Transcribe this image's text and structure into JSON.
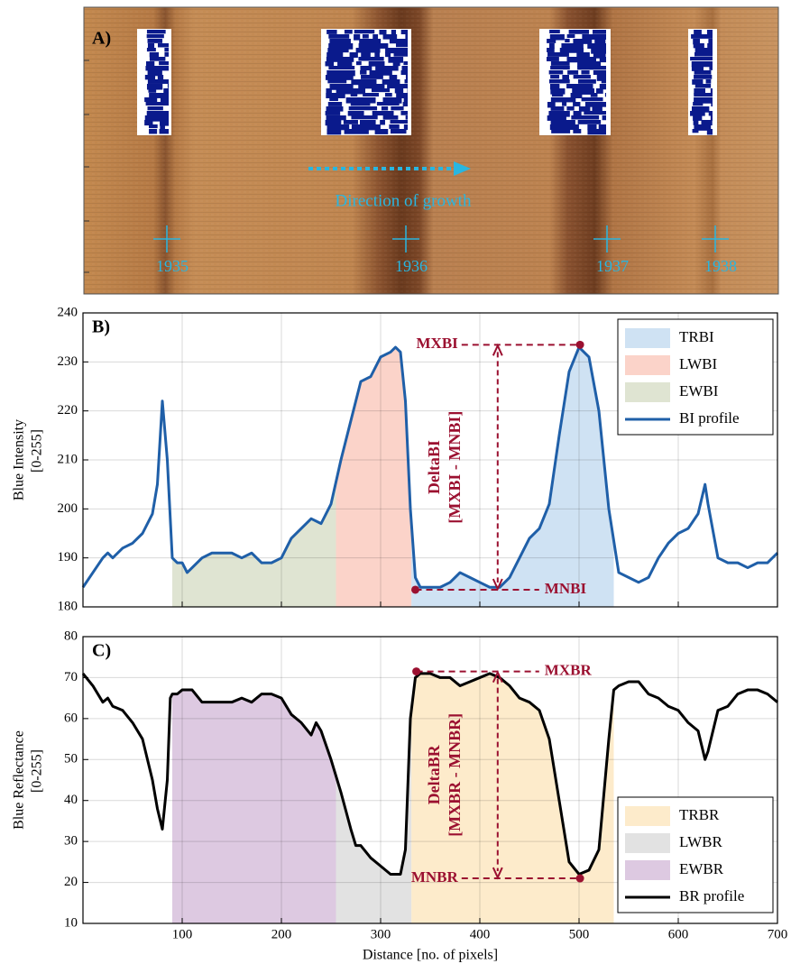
{
  "image_panel": {
    "label": "A)",
    "caption": "Direction of growth",
    "years": [
      "1935",
      "1936",
      "1937",
      "1938"
    ]
  },
  "chart_data": [
    {
      "type": "line",
      "panel_label": "B)",
      "ylabel": [
        "Blue Intensity",
        "[0-255]"
      ],
      "x": [
        0,
        10,
        20,
        25,
        30,
        40,
        50,
        60,
        70,
        75,
        80,
        85,
        90,
        95,
        100,
        105,
        110,
        120,
        130,
        140,
        150,
        160,
        170,
        180,
        190,
        200,
        210,
        220,
        230,
        240,
        250,
        260,
        270,
        280,
        290,
        300,
        310,
        315,
        320,
        325,
        330,
        335,
        340,
        350,
        360,
        370,
        380,
        390,
        400,
        410,
        420,
        430,
        440,
        450,
        460,
        470,
        480,
        490,
        500,
        510,
        520,
        530,
        540,
        550,
        560,
        570,
        580,
        590,
        600,
        610,
        620,
        627,
        630,
        640,
        650,
        660,
        670,
        680,
        690,
        700
      ],
      "series": [
        {
          "name": "BI profile",
          "color": "#1f5fa8",
          "values": [
            184,
            187,
            190,
            191,
            190,
            192,
            193,
            195,
            199,
            205,
            222,
            210,
            190,
            189,
            189,
            187,
            188,
            190,
            191,
            191,
            191,
            190,
            191,
            189,
            189,
            190,
            194,
            196,
            198,
            197,
            201,
            210,
            218,
            226,
            227,
            231,
            232,
            233,
            232,
            222,
            200,
            186,
            184,
            184,
            184,
            185,
            187,
            186,
            185,
            184,
            184,
            186,
            190,
            194,
            196,
            201,
            215,
            228,
            233,
            231,
            220,
            200,
            187,
            186,
            185,
            186,
            190,
            193,
            195,
            196,
            199,
            205,
            201,
            190,
            189,
            189,
            188,
            189,
            189,
            191
          ]
        }
      ],
      "regions": [
        {
          "name": "TRBI",
          "color": "#cfe2f3",
          "from": 331,
          "to": 535
        },
        {
          "name": "LWBI",
          "color": "#fbd3c9",
          "from": 255,
          "to": 331
        },
        {
          "name": "EWBI",
          "color": "#dfe4d2",
          "from": 90,
          "to": 255
        }
      ],
      "annotations": [
        {
          "text": "MXBI",
          "x": 501,
          "y": 233.5
        },
        {
          "text": "MNBI",
          "x": 335,
          "y": 183.5
        }
      ],
      "delta_label": [
        "DeltaBI",
        "[MXBI - MNBI]"
      ],
      "annotation_color": "#9b1030",
      "xlim": [
        0,
        700
      ],
      "xticks": [
        100,
        200,
        300,
        400,
        500,
        600,
        700
      ],
      "show_xtick_labels": false,
      "ylim": [
        180,
        240
      ],
      "yticks": [
        180,
        190,
        200,
        210,
        220,
        230,
        240
      ],
      "grid": true,
      "legend": "upper right"
    },
    {
      "type": "line",
      "panel_label": "C)",
      "ylabel": [
        "Blue Reflectance",
        "[0-255]"
      ],
      "xlabel": "Distance [no. of pixels]",
      "x": [
        0,
        10,
        20,
        25,
        30,
        40,
        50,
        60,
        70,
        75,
        80,
        85,
        88,
        90,
        95,
        100,
        110,
        120,
        130,
        140,
        150,
        160,
        170,
        180,
        190,
        200,
        210,
        220,
        230,
        235,
        240,
        250,
        260,
        270,
        275,
        280,
        290,
        300,
        310,
        320,
        325,
        330,
        335,
        340,
        350,
        360,
        370,
        380,
        390,
        400,
        410,
        420,
        430,
        440,
        450,
        460,
        470,
        480,
        490,
        500,
        510,
        520,
        530,
        535,
        540,
        550,
        560,
        570,
        580,
        590,
        600,
        610,
        620,
        627,
        630,
        640,
        650,
        660,
        670,
        680,
        690,
        700
      ],
      "series": [
        {
          "name": "BR profile",
          "color": "#000000",
          "values": [
            71,
            68,
            64,
            65,
            63,
            62,
            59,
            55,
            45,
            38,
            33,
            45,
            65,
            66,
            66,
            67,
            67,
            64,
            64,
            64,
            64,
            65,
            64,
            66,
            66,
            65,
            61,
            59,
            56,
            59,
            57,
            50,
            42,
            33,
            29,
            29,
            26,
            24,
            22,
            22,
            28,
            60,
            70,
            71,
            71,
            70,
            70,
            68,
            69,
            70,
            71,
            70,
            68,
            65,
            64,
            62,
            55,
            40,
            25,
            22,
            23,
            28,
            55,
            67,
            68,
            69,
            69,
            66,
            65,
            63,
            62,
            59,
            57,
            50,
            52,
            62,
            63,
            66,
            67,
            67,
            66,
            64
          ]
        }
      ],
      "regions": [
        {
          "name": "TRBR",
          "color": "#fdebcb",
          "from": 331,
          "to": 535
        },
        {
          "name": "LWBR",
          "color": "#e2e2e2",
          "from": 255,
          "to": 331
        },
        {
          "name": "EWBR",
          "color": "#ddc9e1",
          "from": 90,
          "to": 255
        }
      ],
      "annotations": [
        {
          "text": "MXBR",
          "x": 336,
          "y": 71.5
        },
        {
          "text": "MNBR",
          "x": 501,
          "y": 21
        }
      ],
      "delta_label": [
        "DeltaBR",
        "[MXBR - MNBR]"
      ],
      "annotation_color": "#9b1030",
      "xlim": [
        0,
        700
      ],
      "xticks": [
        100,
        200,
        300,
        400,
        500,
        600,
        700
      ],
      "show_xtick_labels": true,
      "ylim": [
        10,
        80
      ],
      "yticks": [
        10,
        20,
        30,
        40,
        50,
        60,
        70,
        80
      ],
      "grid": true,
      "legend": "lower right"
    }
  ]
}
